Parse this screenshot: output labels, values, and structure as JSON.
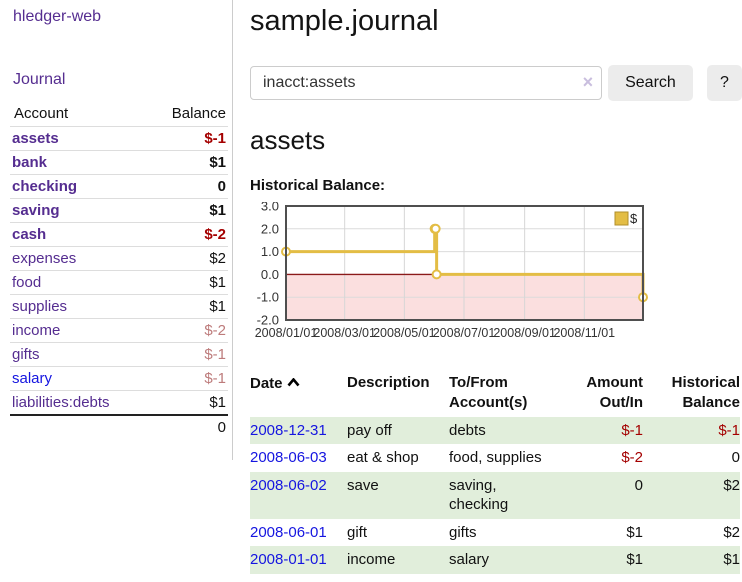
{
  "colors": {
    "link_purple": "#552d90",
    "link_blue": "#1515e0",
    "negative": "#a40000",
    "negative_muted": "#bd7b7b",
    "stripe_green": "#e1eedb",
    "chart_line": "#e3bd45",
    "chart_negative_fill": "#fbdfdf",
    "chart_zero_line": "#8b1a1a"
  },
  "sidebar": {
    "brand": "hledger-web",
    "journal_label": "Journal",
    "accounts_table": {
      "account_header": "Account",
      "balance_header": "Balance",
      "rows": [
        {
          "label": "assets",
          "balance": "$-1",
          "depth": 1,
          "bold": true,
          "link": "purple",
          "balance_class": "neg-strong"
        },
        {
          "label": "bank",
          "balance": "$1",
          "depth": 2,
          "bold": true,
          "link": "purple",
          "balance_class": "bold"
        },
        {
          "label": "checking",
          "balance": "0",
          "depth": 3,
          "bold": true,
          "link": "purple",
          "balance_class": "bold"
        },
        {
          "label": "saving",
          "balance": "$1",
          "depth": 3,
          "bold": true,
          "link": "purple",
          "balance_class": "bold"
        },
        {
          "label": "cash",
          "balance": "$-2",
          "depth": 2,
          "bold": true,
          "link": "purple",
          "balance_class": "neg-strong"
        },
        {
          "label": "expenses",
          "balance": "$2",
          "depth": 1,
          "bold": false,
          "link": "purple",
          "balance_class": "plain"
        },
        {
          "label": "food",
          "balance": "$1",
          "depth": 2,
          "bold": false,
          "link": "purple",
          "balance_class": "plain"
        },
        {
          "label": "supplies",
          "balance": "$1",
          "depth": 2,
          "bold": false,
          "link": "purple",
          "balance_class": "plain"
        },
        {
          "label": "income",
          "balance": "$-2",
          "depth": 1,
          "bold": false,
          "link": "purple",
          "balance_class": "neg-muted"
        },
        {
          "label": "gifts",
          "balance": "$-1",
          "depth": 2,
          "bold": false,
          "link": "purple",
          "balance_class": "neg-muted"
        },
        {
          "label": "salary",
          "balance": "$-1",
          "depth": 2,
          "bold": false,
          "link": "blue",
          "balance_class": "neg-muted"
        },
        {
          "label": "liabilities:debts",
          "balance": "$1",
          "depth": 1,
          "bold": false,
          "link": "purple",
          "balance_class": "plain"
        }
      ],
      "total": "0"
    }
  },
  "main": {
    "title": "sample.journal",
    "search": {
      "value": "inacct:assets",
      "clear_icon": "×",
      "button_label": "Search",
      "help_label": "?"
    },
    "account_heading": "assets",
    "chart_label": "Historical Balance:",
    "register": {
      "sort": "ascending",
      "headers": {
        "date": "Date",
        "description": "Description",
        "accounts": "To/From Account(s)",
        "amount": "Amount Out/In",
        "balance": "Historical Balance"
      },
      "rows": [
        {
          "date": "2008-12-31",
          "description": "pay off",
          "accounts": "debts",
          "amount": "$-1",
          "balance": "$-1",
          "shaded": true
        },
        {
          "date": "2008-06-03",
          "description": "eat & shop",
          "accounts": "food, supplies",
          "amount": "$-2",
          "balance": "0",
          "shaded": false
        },
        {
          "date": "2008-06-02",
          "description": "save",
          "accounts": "saving, checking",
          "amount": "0",
          "balance": "$2",
          "shaded": true
        },
        {
          "date": "2008-06-01",
          "description": "gift",
          "accounts": "gifts",
          "amount": "$1",
          "balance": "$2",
          "shaded": false
        },
        {
          "date": "2008-01-01",
          "description": "income",
          "accounts": "salary",
          "amount": "$1",
          "balance": "$1",
          "shaded": true
        }
      ]
    }
  },
  "chart_data": {
    "type": "line",
    "title": "Historical Balance:",
    "step": true,
    "series": [
      {
        "name": "$",
        "points": [
          [
            "2008-01-01",
            1
          ],
          [
            "2008-06-01",
            2
          ],
          [
            "2008-06-02",
            2
          ],
          [
            "2008-06-03",
            0
          ],
          [
            "2008-12-31",
            -1
          ]
        ]
      }
    ],
    "x_ticks": [
      "2008/01/01",
      "2008/03/01",
      "2008/05/01",
      "2008/07/01",
      "2008/09/01",
      "2008/11/01"
    ],
    "y_tick_labels": [
      "3.0",
      "2.0",
      "1.0",
      "0.0",
      "-1.0",
      "-2.0"
    ],
    "xlim": [
      "2008-01-01",
      "2008-12-31"
    ],
    "ylim": [
      -2,
      3
    ],
    "grid": true,
    "legend": {
      "label": "$",
      "position": "top-right"
    },
    "negative_region_shaded": true
  }
}
